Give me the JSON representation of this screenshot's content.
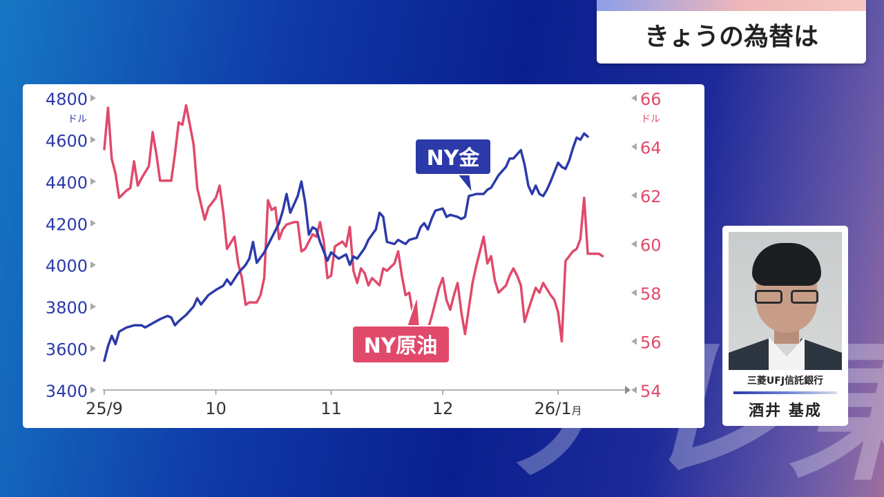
{
  "header": {
    "title": "きょうの為替は"
  },
  "watermark": {
    "text": "テレ東"
  },
  "presenter": {
    "organization": "三菱UFJ信託銀行",
    "name": "酒井 基成"
  },
  "colors": {
    "gold": "#2b3aa8",
    "oil": "#e0496a",
    "axis": "#999999",
    "tick_arrow": "#aaaaaa"
  },
  "chart_data": {
    "type": "line",
    "x_ticks": [
      {
        "label": "25/9",
        "x": 0
      },
      {
        "label": "10",
        "x": 30
      },
      {
        "label": "11",
        "x": 61
      },
      {
        "label": "12",
        "x": 91
      },
      {
        "label": "26/1",
        "x": 122,
        "suffix": "月"
      }
    ],
    "y_left": {
      "unit": "ドル",
      "ticks": [
        "4800",
        "4600",
        "4400",
        "4200",
        "4000",
        "3800",
        "3600",
        "3400"
      ],
      "lim": [
        3400,
        4800
      ]
    },
    "y_right": {
      "unit": "ドル",
      "ticks": [
        "66",
        "64",
        "62",
        "60",
        "58",
        "56",
        "54"
      ],
      "lim": [
        54,
        66
      ]
    },
    "x_lim": [
      0,
      140
    ],
    "series": [
      {
        "name": "NY金",
        "axis": "left",
        "points": [
          [
            0,
            3540
          ],
          [
            1,
            3610
          ],
          [
            2,
            3660
          ],
          [
            3,
            3620
          ],
          [
            4,
            3680
          ],
          [
            6,
            3700
          ],
          [
            8,
            3710
          ],
          [
            10,
            3710
          ],
          [
            11,
            3700
          ],
          [
            13,
            3720
          ],
          [
            15,
            3740
          ],
          [
            17,
            3755
          ],
          [
            18,
            3748
          ],
          [
            19,
            3710
          ],
          [
            20,
            3730
          ],
          [
            22,
            3760
          ],
          [
            24,
            3800
          ],
          [
            25,
            3840
          ],
          [
            26,
            3810
          ],
          [
            28,
            3855
          ],
          [
            30,
            3880
          ],
          [
            32,
            3900
          ],
          [
            33,
            3930
          ],
          [
            34,
            3905
          ],
          [
            36,
            3960
          ],
          [
            38,
            4000
          ],
          [
            39,
            4030
          ],
          [
            40,
            4110
          ],
          [
            41,
            4010
          ],
          [
            43,
            4060
          ],
          [
            45,
            4130
          ],
          [
            47,
            4200
          ],
          [
            48,
            4260
          ],
          [
            49,
            4340
          ],
          [
            50,
            4250
          ],
          [
            52,
            4330
          ],
          [
            53,
            4400
          ],
          [
            54,
            4300
          ],
          [
            55,
            4145
          ],
          [
            56,
            4180
          ],
          [
            57,
            4170
          ],
          [
            58,
            4110
          ],
          [
            60,
            4020
          ],
          [
            61,
            4060
          ],
          [
            63,
            4030
          ],
          [
            64,
            4040
          ],
          [
            65,
            4050
          ],
          [
            66,
            4000
          ],
          [
            67,
            4040
          ],
          [
            68,
            4030
          ],
          [
            70,
            4080
          ],
          [
            71,
            4120
          ],
          [
            73,
            4170
          ],
          [
            74,
            4250
          ],
          [
            75,
            4230
          ],
          [
            76,
            4110
          ],
          [
            78,
            4100
          ],
          [
            79,
            4120
          ],
          [
            81,
            4100
          ],
          [
            82,
            4120
          ],
          [
            84,
            4130
          ],
          [
            85,
            4180
          ],
          [
            86,
            4200
          ],
          [
            87,
            4170
          ],
          [
            88,
            4220
          ],
          [
            89,
            4260
          ],
          [
            91,
            4270
          ],
          [
            92,
            4230
          ],
          [
            93,
            4240
          ],
          [
            95,
            4230
          ],
          [
            96,
            4220
          ],
          [
            97,
            4230
          ],
          [
            98,
            4330
          ],
          [
            100,
            4340
          ],
          [
            102,
            4340
          ],
          [
            103,
            4360
          ],
          [
            104,
            4370
          ],
          [
            106,
            4430
          ],
          [
            108,
            4470
          ],
          [
            109,
            4510
          ],
          [
            110,
            4510
          ],
          [
            112,
            4550
          ],
          [
            113,
            4480
          ],
          [
            114,
            4380
          ],
          [
            115,
            4340
          ],
          [
            116,
            4380
          ],
          [
            117,
            4340
          ],
          [
            118,
            4330
          ],
          [
            119,
            4360
          ],
          [
            120,
            4400
          ],
          [
            122,
            4490
          ],
          [
            123,
            4470
          ],
          [
            124,
            4460
          ],
          [
            125,
            4500
          ],
          [
            126,
            4560
          ],
          [
            127,
            4610
          ],
          [
            128,
            4600
          ],
          [
            129,
            4630
          ],
          [
            130,
            4615
          ]
        ]
      },
      {
        "name": "NY原油",
        "axis": "right",
        "points": [
          [
            0,
            63.9
          ],
          [
            1,
            65.6
          ],
          [
            2,
            63.5
          ],
          [
            3,
            62.9
          ],
          [
            4,
            61.9
          ],
          [
            6,
            62.2
          ],
          [
            7,
            62.3
          ],
          [
            8,
            63.4
          ],
          [
            9,
            62.4
          ],
          [
            10,
            62.7
          ],
          [
            12,
            63.2
          ],
          [
            13,
            64.6
          ],
          [
            14,
            63.7
          ],
          [
            15,
            62.6
          ],
          [
            17,
            62.6
          ],
          [
            18,
            62.6
          ],
          [
            19,
            63.7
          ],
          [
            20,
            65.0
          ],
          [
            21,
            64.9
          ],
          [
            22,
            65.7
          ],
          [
            24,
            64.1
          ],
          [
            25,
            62.3
          ],
          [
            27,
            61.0
          ],
          [
            28,
            61.5
          ],
          [
            30,
            61.9
          ],
          [
            31,
            62.4
          ],
          [
            32,
            61.3
          ],
          [
            33,
            59.8
          ],
          [
            35,
            60.3
          ],
          [
            36,
            59.2
          ],
          [
            37,
            58.6
          ],
          [
            38,
            57.5
          ],
          [
            39,
            57.6
          ],
          [
            41,
            57.6
          ],
          [
            42,
            57.9
          ],
          [
            43,
            58.6
          ],
          [
            44,
            61.8
          ],
          [
            45,
            61.4
          ],
          [
            46,
            61.5
          ],
          [
            47,
            60.2
          ],
          [
            48,
            60.6
          ],
          [
            49,
            60.8
          ],
          [
            51,
            60.9
          ],
          [
            52,
            60.9
          ],
          [
            53,
            59.7
          ],
          [
            54,
            59.8
          ],
          [
            56,
            60.4
          ],
          [
            57,
            60.3
          ],
          [
            58,
            60.9
          ],
          [
            59,
            60.1
          ],
          [
            60,
            58.6
          ],
          [
            61,
            58.7
          ],
          [
            62,
            59.9
          ],
          [
            64,
            60.1
          ],
          [
            65,
            59.9
          ],
          [
            66,
            60.7
          ],
          [
            67,
            58.9
          ],
          [
            68,
            58.4
          ],
          [
            69,
            59.0
          ],
          [
            70,
            58.8
          ],
          [
            71,
            58.3
          ],
          [
            72,
            58.6
          ],
          [
            74,
            58.3
          ],
          [
            75,
            59.0
          ],
          [
            76,
            58.9
          ],
          [
            78,
            59.2
          ],
          [
            79,
            59.7
          ],
          [
            80,
            58.7
          ],
          [
            81,
            57.9
          ],
          [
            82,
            58.0
          ],
          [
            84,
            56.2
          ],
          [
            85,
            55.4
          ],
          [
            86,
            56.0
          ],
          [
            88,
            57.0
          ],
          [
            90,
            58.2
          ],
          [
            91,
            58.6
          ],
          [
            92,
            57.7
          ],
          [
            93,
            57.3
          ],
          [
            94,
            57.9
          ],
          [
            95,
            58.4
          ],
          [
            96,
            57.2
          ],
          [
            97,
            56.3
          ],
          [
            99,
            58.4
          ],
          [
            100,
            59.1
          ],
          [
            102,
            60.3
          ],
          [
            103,
            59.2
          ],
          [
            104,
            59.5
          ],
          [
            105,
            58.5
          ],
          [
            106,
            58.0
          ],
          [
            108,
            58.3
          ],
          [
            109,
            58.7
          ],
          [
            110,
            59.0
          ],
          [
            111,
            58.7
          ],
          [
            112,
            58.3
          ],
          [
            113,
            56.8
          ],
          [
            114,
            57.3
          ],
          [
            116,
            58.2
          ],
          [
            117,
            58.0
          ],
          [
            118,
            58.4
          ],
          [
            120,
            57.9
          ],
          [
            121,
            57.7
          ],
          [
            122,
            57.2
          ],
          [
            123,
            56.0
          ],
          [
            124,
            59.3
          ],
          [
            126,
            59.7
          ],
          [
            127,
            59.8
          ],
          [
            128,
            60.2
          ],
          [
            129,
            61.9
          ],
          [
            130,
            59.6
          ],
          [
            131,
            59.6
          ],
          [
            133,
            59.6
          ],
          [
            134,
            59.5
          ]
        ]
      }
    ],
    "annotations": [
      {
        "text": "NY金",
        "series": 0
      },
      {
        "text": "NY原油",
        "series": 1
      }
    ]
  }
}
